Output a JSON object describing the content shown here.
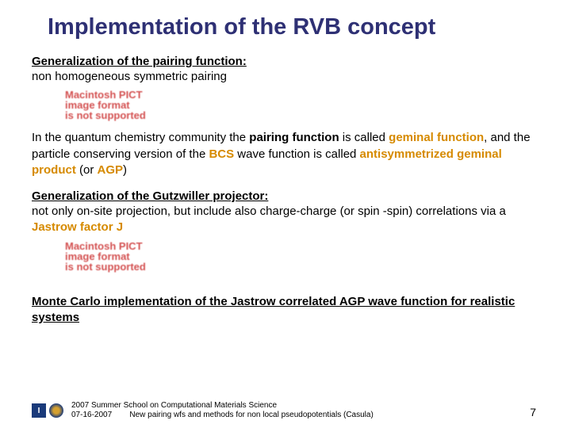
{
  "title": "Implementation of the RVB concept",
  "sections": {
    "s1": {
      "head": "Generalization of the pairing function:",
      "line": "non homogeneous symmetric pairing"
    },
    "s2": {
      "pre": "In the quantum chemistry community the ",
      "kw1": "pairing function",
      "mid1": " is called ",
      "kw2": "geminal function",
      "mid2": ", and the particle conserving version of the ",
      "kw3": "BCS",
      "mid3": " wave function is called ",
      "kw4": "antisymmetrized geminal product",
      "mid4": " (or ",
      "kw5": "AGP",
      "end": ")"
    },
    "s3": {
      "head": "Generalization of the Gutzwiller projector:",
      "pre": "not only on-site projection, but include also charge-charge (or spin -spin) correlations via a ",
      "kw": "Jastrow factor J"
    },
    "s4": {
      "head": "Monte Carlo implementation of the Jastrow correlated AGP wave function for realistic systems"
    }
  },
  "pict": {
    "l1": "Macintosh PICT",
    "l2": "image format",
    "l3": "is not supported"
  },
  "footer": {
    "line1": "2007 Summer School on Computational Materials Science",
    "line2": "07-16-2007        New pairing wfs and methods for non local pseudopotentials (Casula)",
    "icon_i": "I"
  },
  "page": "7"
}
